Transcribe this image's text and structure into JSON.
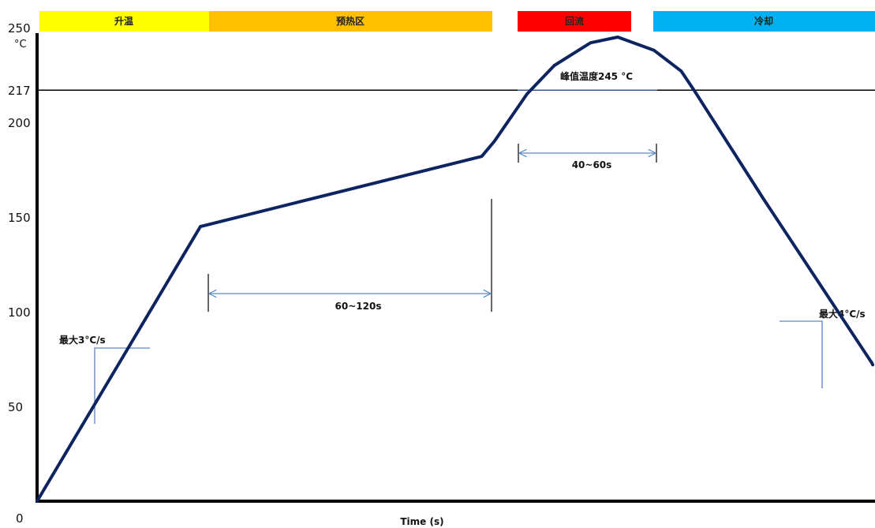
{
  "chart_data": {
    "type": "line",
    "title": "",
    "xlabel": "Time (s)",
    "ylabel": "°C",
    "x_origin_label": "0",
    "yticks": [
      50,
      100,
      150,
      200,
      217,
      250
    ],
    "ylim": [
      0,
      260
    ],
    "liquidus_line": 217,
    "colors": {
      "curve": "#0d2461",
      "annotation": "#5b86c4",
      "axis": "#000000",
      "phase_ramp": "#ffff00",
      "phase_preheat": "#ffc000",
      "phase_reflow": "#ff0000",
      "phase_cooling": "#00b0f0"
    },
    "phases": [
      {
        "name": "升温",
        "color": "#ffff00"
      },
      {
        "name": "预热区",
        "color": "#ffc000"
      },
      {
        "name": "回流",
        "color": "#ff0000"
      },
      {
        "name": "冷却",
        "color": "#00b0f0"
      }
    ],
    "series": [
      {
        "values_comment": "",
        "points": [
          [
            0,
            0
          ],
          [
            90,
            145
          ],
          [
            245,
            182
          ],
          [
            252,
            190
          ],
          [
            270,
            215
          ],
          [
            285,
            230
          ],
          [
            305,
            242
          ],
          [
            320,
            245
          ],
          [
            340,
            238
          ],
          [
            355,
            227
          ],
          [
            362,
            217
          ],
          [
            400,
            160
          ],
          [
            460,
            73
          ],
          [
            460.5,
            72
          ]
        ]
      }
    ],
    "annotations": {
      "ramp_rate": "最大3°C/s",
      "cool_rate": "最大4°C/s",
      "preheat_time": "60~120s",
      "reflow_time": "40~60s",
      "peak": "峰值温度245 °C"
    }
  }
}
